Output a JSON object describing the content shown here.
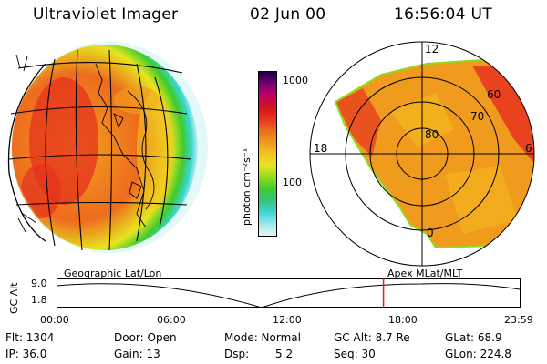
{
  "header": {
    "instrument": "Ultraviolet Imager",
    "date": "02 Jun 00",
    "time": "16:56:04 UT"
  },
  "colorbar": {
    "unit_label": "photon cm⁻²s⁻¹",
    "tick_top": "1000",
    "tick_mid": "100",
    "colors": [
      "#e6f6f6",
      "#9ee9e9",
      "#3cd6d6",
      "#37c37f",
      "#3ecb2e",
      "#8fdc1e",
      "#e6e61e",
      "#f5c31e",
      "#f09a1e",
      "#ee6b1e",
      "#e6321e",
      "#d2141e",
      "#c00064",
      "#780078",
      "#1a0042"
    ]
  },
  "polar_plot": {
    "labels": {
      "noon": "12",
      "dusk": "18",
      "dawn": "6",
      "midnight": "0",
      "lat60": "60",
      "lat70": "70",
      "lat80": "80"
    }
  },
  "projection_labels": {
    "left": "Geographic Lat/Lon",
    "right": "Apex MLat/MLT"
  },
  "altitude_plot": {
    "axis_label": "GC Alt",
    "ytick_top": "9.0",
    "ytick_bottom": "1.8",
    "xticks": [
      "00:00",
      "06:00",
      "12:00",
      "18:00",
      "23:59"
    ],
    "marker_color": "#e02020",
    "marker_time_fraction": 0.706
  },
  "info": {
    "flt": "Flt: 1304",
    "ip": "IP: 36.0",
    "door": "Door: Open",
    "gain": "Gain: 13",
    "mode": "Mode: Normal",
    "dsp": "Dsp:",
    "dsp_value": "5.2",
    "gc_alt": "GC Alt: 8.7 Re",
    "seq": "Seq: 30",
    "glat": "GLat:  68.9",
    "glon": "GLon: 224.8"
  }
}
